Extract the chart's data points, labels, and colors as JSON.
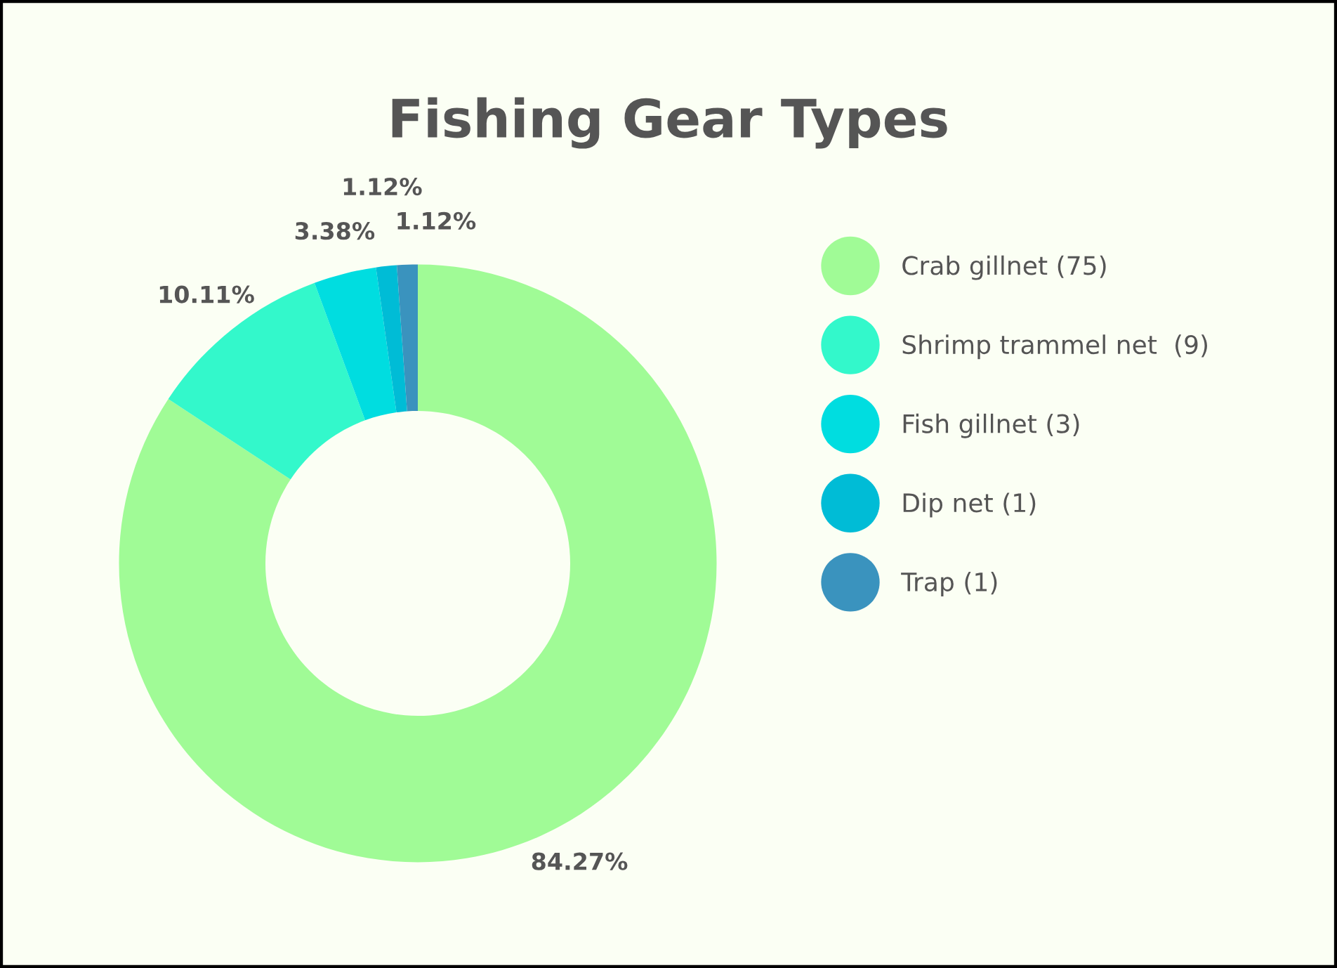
{
  "chart_data": {
    "type": "donut",
    "title": "Fishing Gear Types",
    "categories": [
      "Crab gillnet (75)",
      "Shrimp trammel net  (9)",
      "Fish gillnet (3)",
      "Dip net (1)",
      "Trap (1)"
    ],
    "values": [
      84.27,
      10.11,
      3.38,
      1.12,
      1.12
    ],
    "colors": [
      "#a0fb96",
      "#33f8cb",
      "#00dde0",
      "#00bcd6",
      "#3a93be"
    ],
    "value_labels": [
      "84.27%",
      "10.11%",
      "3.38%",
      "1.12%",
      "1.12%"
    ],
    "legend": "right"
  }
}
